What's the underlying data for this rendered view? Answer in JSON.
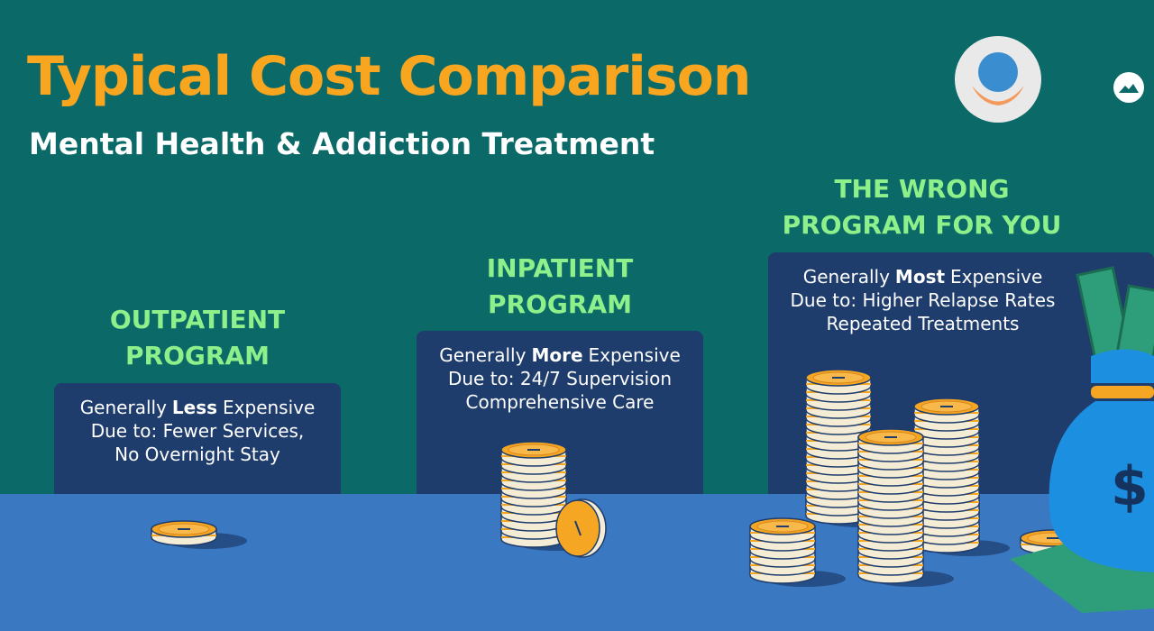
{
  "header": {
    "title": "Typical Cost Comparison",
    "subtitle": "Mental Health & Addiction Treatment"
  },
  "columns": [
    {
      "heading_lines": [
        "OUTPATIENT",
        "PROGRAM"
      ],
      "description": {
        "prefix": "Generally",
        "emphasis": "Less",
        "suffix": "Expensive"
      },
      "details": [
        "Due to: Fewer Services,",
        "No Overnight Stay"
      ]
    },
    {
      "heading_lines": [
        "INPATIENT",
        "PROGRAM"
      ],
      "description": {
        "prefix": "Generally",
        "emphasis": "More",
        "suffix": "Expensive"
      },
      "details": [
        "Due to: 24/7 Supervision",
        "Comprehensive Care"
      ]
    },
    {
      "heading_lines": [
        "THE WRONG",
        "PROGRAM FOR YOU"
      ],
      "description": {
        "prefix": "Generally",
        "emphasis": "Most",
        "suffix": "Expensive"
      },
      "details": [
        "Due to: Higher Relapse Rates",
        "Repeated Treatments"
      ]
    }
  ]
}
